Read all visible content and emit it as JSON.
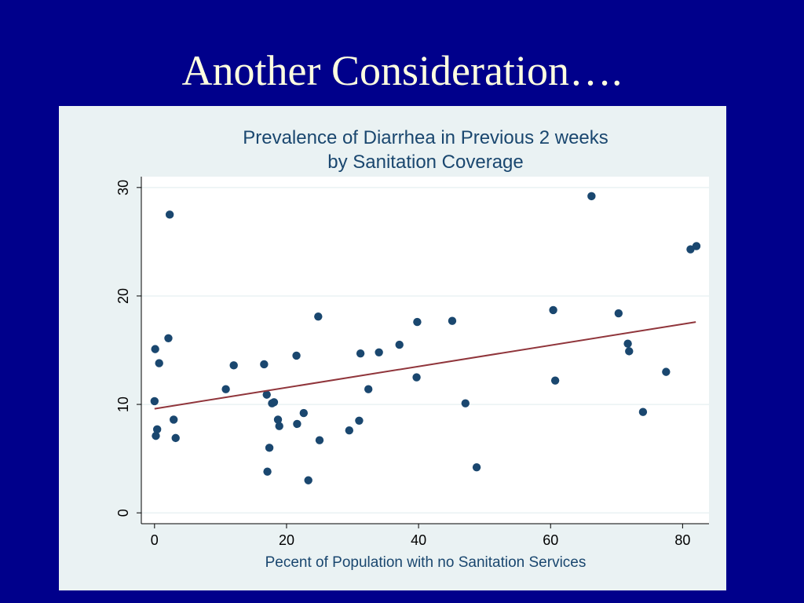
{
  "slide": {
    "title": "Another Consideration…."
  },
  "colors": {
    "background": "#00008b",
    "title_text": "#ffffe0",
    "panel": "#eaf2f3",
    "plot_area": "#ffffff",
    "points": "#1a476f",
    "fit_line": "#90353b",
    "text": "#1a476f"
  },
  "chart_data": {
    "type": "scatter",
    "title_line1": "Prevalence of Diarrhea in Previous 2 weeks",
    "title_line2": "by Sanitation Coverage",
    "xlabel": "Pecent of Population with no Sanitation Services",
    "ylabel": "",
    "xlim": [
      -2,
      84
    ],
    "ylim": [
      -1,
      31
    ],
    "xticks": [
      0,
      20,
      40,
      60,
      80
    ],
    "yticks": [
      0,
      10,
      20,
      30
    ],
    "grid": true,
    "legend": "none",
    "points": [
      {
        "x": 0.0,
        "y": 10.3
      },
      {
        "x": 0.1,
        "y": 15.1
      },
      {
        "x": 0.2,
        "y": 7.1
      },
      {
        "x": 0.4,
        "y": 7.7
      },
      {
        "x": 0.7,
        "y": 13.8
      },
      {
        "x": 2.1,
        "y": 16.1
      },
      {
        "x": 2.3,
        "y": 27.5
      },
      {
        "x": 2.9,
        "y": 8.6
      },
      {
        "x": 3.2,
        "y": 6.9
      },
      {
        "x": 10.8,
        "y": 11.4
      },
      {
        "x": 12.0,
        "y": 13.6
      },
      {
        "x": 16.6,
        "y": 13.7
      },
      {
        "x": 17.0,
        "y": 10.9
      },
      {
        "x": 17.1,
        "y": 3.8
      },
      {
        "x": 17.4,
        "y": 6.0
      },
      {
        "x": 17.8,
        "y": 10.1
      },
      {
        "x": 18.1,
        "y": 10.2
      },
      {
        "x": 18.7,
        "y": 8.6
      },
      {
        "x": 18.9,
        "y": 8.0
      },
      {
        "x": 21.5,
        "y": 14.5
      },
      {
        "x": 21.6,
        "y": 8.2
      },
      {
        "x": 22.6,
        "y": 9.2
      },
      {
        "x": 23.3,
        "y": 3.0
      },
      {
        "x": 24.8,
        "y": 18.1
      },
      {
        "x": 25.0,
        "y": 6.7
      },
      {
        "x": 29.5,
        "y": 7.6
      },
      {
        "x": 31.0,
        "y": 8.5
      },
      {
        "x": 31.2,
        "y": 14.7
      },
      {
        "x": 32.4,
        "y": 11.4
      },
      {
        "x": 34.0,
        "y": 14.8
      },
      {
        "x": 37.1,
        "y": 15.5
      },
      {
        "x": 39.7,
        "y": 12.5
      },
      {
        "x": 39.8,
        "y": 17.6
      },
      {
        "x": 45.1,
        "y": 17.7
      },
      {
        "x": 47.1,
        "y": 10.1
      },
      {
        "x": 48.8,
        "y": 4.2
      },
      {
        "x": 60.4,
        "y": 18.7
      },
      {
        "x": 60.7,
        "y": 12.2
      },
      {
        "x": 66.2,
        "y": 29.2
      },
      {
        "x": 70.3,
        "y": 18.4
      },
      {
        "x": 71.7,
        "y": 15.6
      },
      {
        "x": 71.9,
        "y": 14.9
      },
      {
        "x": 74.0,
        "y": 9.3
      },
      {
        "x": 77.5,
        "y": 13.0
      },
      {
        "x": 81.2,
        "y": 24.3
      },
      {
        "x": 82.1,
        "y": 24.6
      }
    ],
    "fit_line": {
      "x": [
        0,
        82
      ],
      "y": [
        9.6,
        17.6
      ]
    }
  }
}
